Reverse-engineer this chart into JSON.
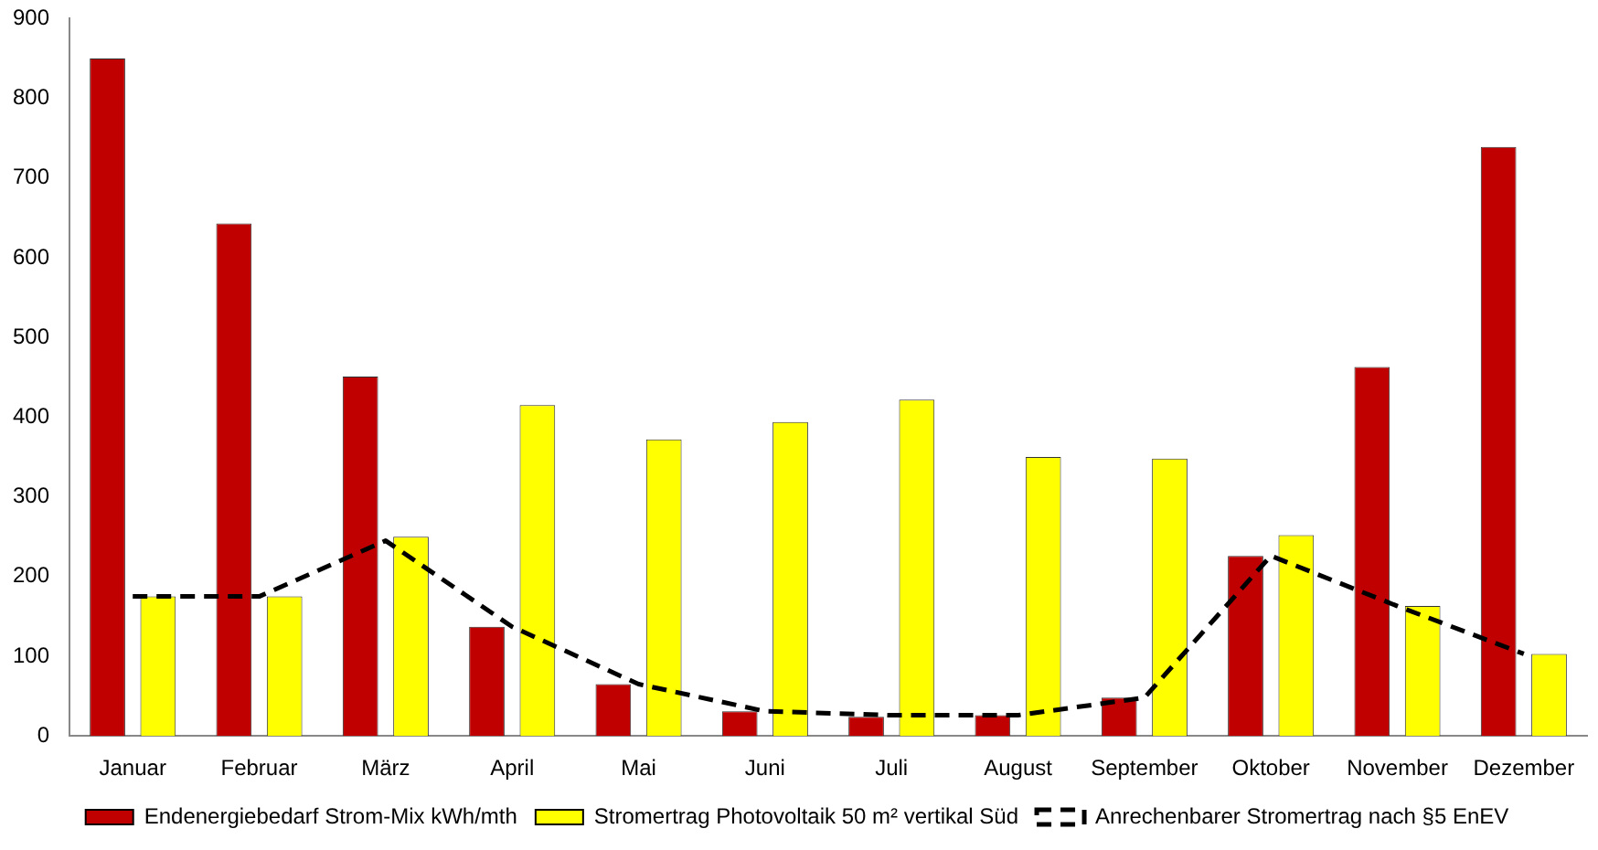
{
  "chart_data": {
    "type": "bar",
    "categories": [
      "Januar",
      "Februar",
      "März",
      "April",
      "Mai",
      "Juni",
      "Juli",
      "August",
      "September",
      "Oktober",
      "November",
      "Dezember"
    ],
    "series": [
      {
        "name": "Endenergiebedarf Strom-Mix kWh/mth",
        "color": "#c00000",
        "values": [
          850,
          643,
          451,
          137,
          65,
          31,
          24,
          26,
          48,
          226,
          463,
          739
        ]
      },
      {
        "name": "Stromertrag Photovoltaik 50 m² vertikal Süd",
        "color": "#ffff00",
        "values": [
          175,
          175,
          250,
          415,
          372,
          394,
          422,
          350,
          348,
          252,
          163,
          103
        ]
      },
      {
        "name": "Anrechenbarer Stromertrag nach §5 EnEV",
        "type": "line",
        "color": "#000000",
        "line_style": "dashed",
        "marker": "none",
        "values": [
          175,
          175,
          245,
          137,
          65,
          31,
          26,
          26,
          48,
          226,
          163,
          103
        ]
      }
    ],
    "ylim": [
      0,
      900
    ],
    "yticks": [
      0,
      100,
      200,
      300,
      400,
      500,
      600,
      700,
      800,
      900
    ],
    "grid": false,
    "legend": "bottom"
  }
}
